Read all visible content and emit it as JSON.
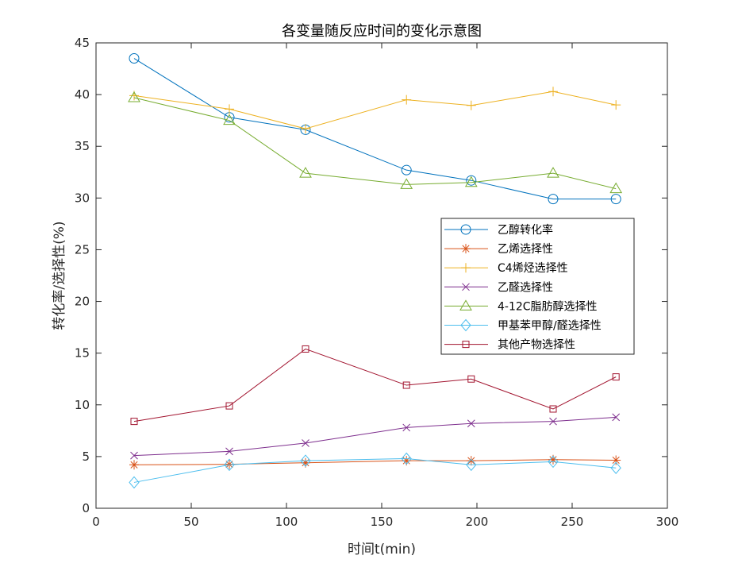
{
  "chart_data": {
    "type": "line",
    "title": "各变量随反应时间的变化示意图",
    "xlabel": "时间t(min)",
    "ylabel": "转化率/选择性(%)",
    "xlim": [
      0,
      300
    ],
    "ylim": [
      0,
      45
    ],
    "xticks": [
      0,
      50,
      100,
      150,
      200,
      250,
      300
    ],
    "yticks": [
      0,
      5,
      10,
      15,
      20,
      25,
      30,
      35,
      40,
      45
    ],
    "grid": false,
    "legend_position": "right",
    "x": [
      20,
      70,
      110,
      163,
      197,
      240,
      273
    ],
    "series": [
      {
        "name": "乙醇转化率",
        "marker": "circle",
        "color": "#0072BD",
        "values": [
          43.5,
          37.8,
          36.6,
          32.7,
          31.7,
          29.9,
          29.9
        ]
      },
      {
        "name": "乙烯选择性",
        "marker": "asterisk",
        "color": "#D95319",
        "values": [
          4.2,
          4.25,
          4.4,
          4.6,
          4.6,
          4.7,
          4.65
        ]
      },
      {
        "name": "C4烯烃选择性",
        "marker": "plus",
        "color": "#EDB120",
        "values": [
          39.9,
          38.6,
          36.7,
          39.5,
          38.95,
          40.3,
          39.0
        ]
      },
      {
        "name": "乙醛选择性",
        "marker": "cross",
        "color": "#7E2F8E",
        "values": [
          5.1,
          5.5,
          6.3,
          7.8,
          8.2,
          8.4,
          8.8
        ]
      },
      {
        "name": "4-12C脂肪醇选择性",
        "marker": "triangle",
        "color": "#77AC30",
        "values": [
          39.7,
          37.5,
          32.4,
          31.3,
          31.5,
          32.4,
          30.9
        ]
      },
      {
        "name": "甲基苯甲醇/醛选择性",
        "marker": "diamond",
        "color": "#4DBEEE",
        "values": [
          2.5,
          4.2,
          4.6,
          4.8,
          4.2,
          4.5,
          3.9
        ]
      },
      {
        "name": "其他产物选择性",
        "marker": "square",
        "color": "#A2142F",
        "values": [
          8.4,
          9.9,
          15.4,
          11.9,
          12.5,
          9.6,
          12.7
        ]
      }
    ]
  }
}
